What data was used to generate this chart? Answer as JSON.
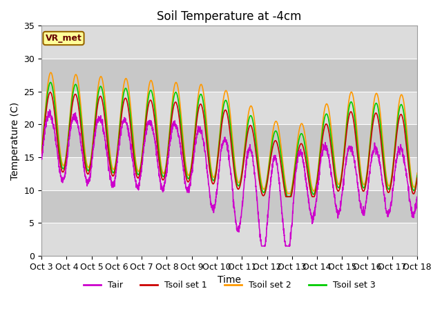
{
  "title": "Soil Temperature at -4cm",
  "xlabel": "Time",
  "ylabel": "Temperature (C)",
  "ylim": [
    0,
    35
  ],
  "n_days": 15,
  "tick_labels": [
    "Oct 3",
    "Oct 4",
    "Oct 5",
    "Oct 6",
    "Oct 7",
    "Oct 8",
    "Oct 9",
    "Oct 10",
    "Oct 11",
    "Oct 12",
    "Oct 13",
    "Oct 14",
    "Oct 15",
    "Oct 16",
    "Oct 17",
    "Oct 18"
  ],
  "plot_bg_light": "#dcdcdc",
  "plot_bg_dark": "#c8c8c8",
  "figure_background": "#ffffff",
  "line_colors": {
    "Tair": "#cc00cc",
    "Tsoil1": "#cc0000",
    "Tsoil2": "#ff9900",
    "Tsoil3": "#00cc00"
  },
  "legend_labels": [
    "Tair",
    "Tsoil set 1",
    "Tsoil set 2",
    "Tsoil set 3"
  ],
  "vr_met_label": "VR_met",
  "grid_color": "#ffffff",
  "title_fontsize": 12,
  "axis_fontsize": 10,
  "tick_fontsize": 9
}
